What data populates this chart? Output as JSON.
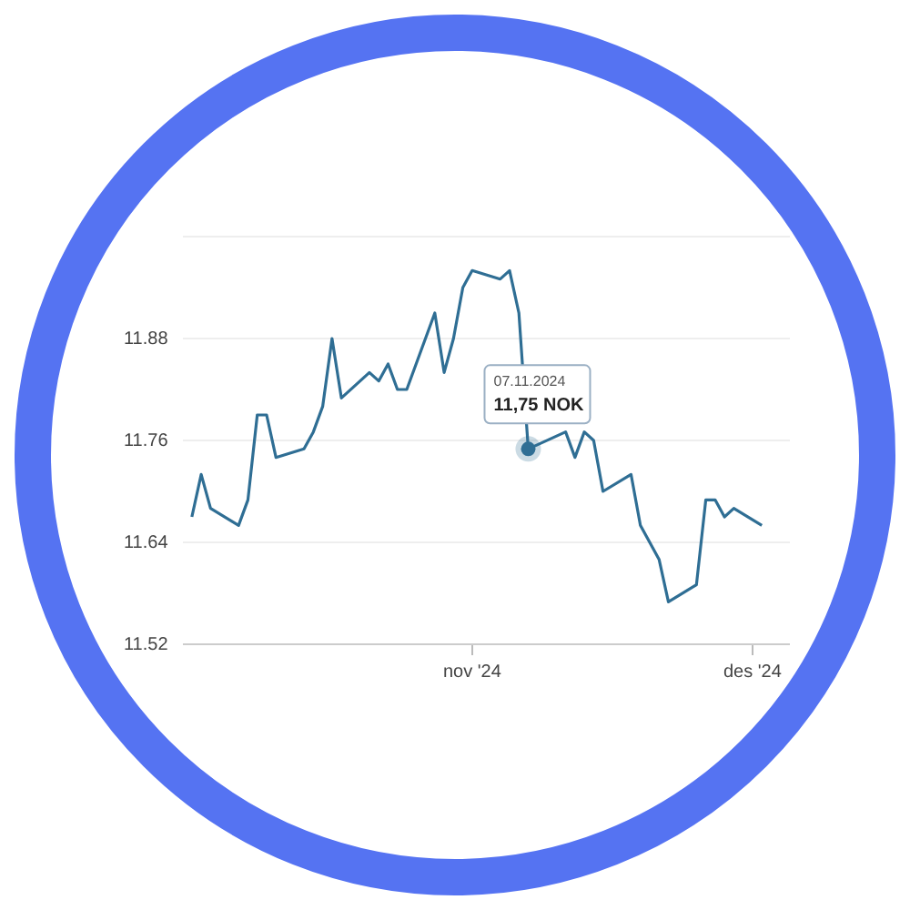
{
  "chart_data": {
    "type": "line",
    "x": [
      "2024-10-02",
      "2024-10-03",
      "2024-10-04",
      "2024-10-07",
      "2024-10-08",
      "2024-10-09",
      "2024-10-10",
      "2024-10-11",
      "2024-10-14",
      "2024-10-15",
      "2024-10-16",
      "2024-10-17",
      "2024-10-18",
      "2024-10-21",
      "2024-10-22",
      "2024-10-23",
      "2024-10-24",
      "2024-10-25",
      "2024-10-28",
      "2024-10-29",
      "2024-10-30",
      "2024-10-31",
      "2024-11-01",
      "2024-11-04",
      "2024-11-05",
      "2024-11-06",
      "2024-11-07",
      "2024-11-08",
      "2024-11-11",
      "2024-11-12",
      "2024-11-13",
      "2024-11-14",
      "2024-11-15",
      "2024-11-18",
      "2024-11-19",
      "2024-11-20",
      "2024-11-21",
      "2024-11-22",
      "2024-11-25",
      "2024-11-26",
      "2024-11-27",
      "2024-11-28",
      "2024-11-29",
      "2024-12-02"
    ],
    "series": [
      {
        "color": "#2f6e94",
        "values": [
          11.67,
          11.72,
          11.68,
          11.66,
          11.69,
          11.79,
          11.79,
          11.74,
          11.75,
          11.77,
          11.8,
          11.88,
          11.81,
          11.84,
          11.83,
          11.85,
          11.82,
          11.82,
          11.91,
          11.84,
          11.88,
          11.94,
          11.96,
          11.95,
          11.96,
          11.91,
          11.75,
          null,
          11.77,
          11.74,
          11.77,
          11.76,
          11.7,
          11.72,
          11.66,
          11.64,
          11.62,
          11.57,
          11.59,
          11.69,
          11.69,
          11.67,
          11.68,
          11.66
        ]
      }
    ],
    "xlim": [
      "2024-10-01",
      "2024-12-05"
    ],
    "xticks": [
      {
        "value": "2024-11-01",
        "label": "nov '24"
      },
      {
        "value": "2024-12-01",
        "label": "des '24"
      }
    ],
    "ylim": [
      11.52,
      12.0
    ],
    "yticks": [
      11.52,
      11.64,
      11.76,
      11.88,
      {
        "value": 12.0,
        "label": null
      }
    ],
    "grid": "y",
    "legend": false,
    "marker": "none",
    "line_style": "solid",
    "annotations": [
      {
        "text": "07.11.2024\n11,75 NOK",
        "x": "2024-11-07",
        "y": 11.75
      }
    ]
  }
}
